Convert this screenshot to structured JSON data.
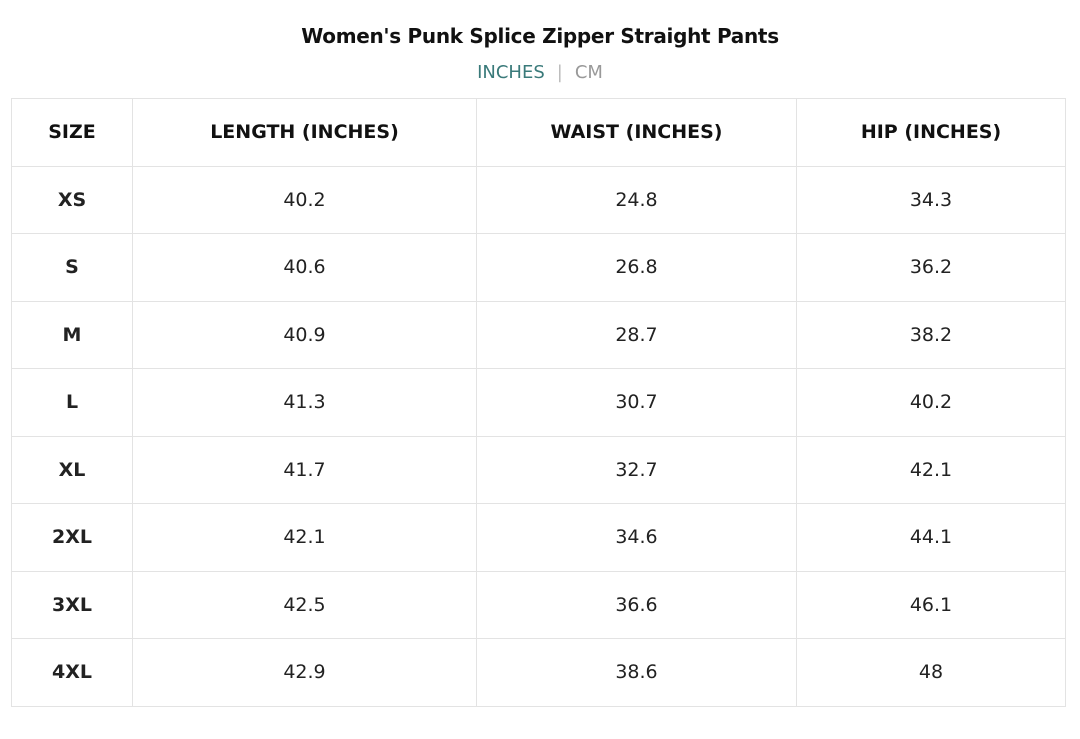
{
  "title": "Women's Punk Splice Zipper Straight Pants",
  "units": {
    "inches": "INCHES",
    "separator": "|",
    "cm": "CM",
    "active": "INCHES",
    "active_color": "#3a7a7a"
  },
  "table": {
    "headers": [
      "SIZE",
      "LENGTH (INCHES)",
      "WAIST (INCHES)",
      "HIP (INCHES)"
    ],
    "rows": [
      [
        "XS",
        "40.2",
        "24.8",
        "34.3"
      ],
      [
        "S",
        "40.6",
        "26.8",
        "36.2"
      ],
      [
        "M",
        "40.9",
        "28.7",
        "38.2"
      ],
      [
        "L",
        "41.3",
        "30.7",
        "40.2"
      ],
      [
        "XL",
        "41.7",
        "32.7",
        "42.1"
      ],
      [
        "2XL",
        "42.1",
        "34.6",
        "44.1"
      ],
      [
        "3XL",
        "42.5",
        "36.6",
        "46.1"
      ],
      [
        "4XL",
        "42.9",
        "38.6",
        "48"
      ]
    ]
  }
}
